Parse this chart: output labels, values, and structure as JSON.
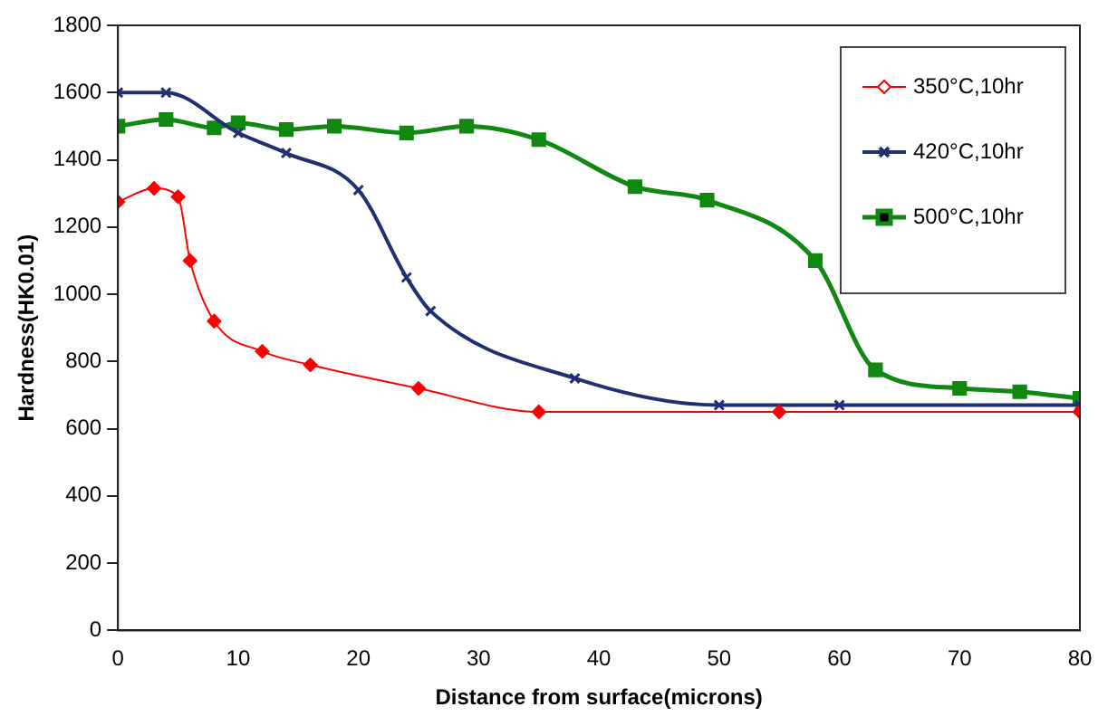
{
  "chart_data": {
    "type": "line",
    "xlabel": "Distance from surface(microns)",
    "ylabel": "Hardness(HK0.01)",
    "xlim": [
      0,
      80
    ],
    "xticks": [
      0,
      10,
      20,
      30,
      40,
      50,
      60,
      70,
      80
    ],
    "ylim": [
      0,
      1800
    ],
    "yticks": [
      0,
      200,
      400,
      600,
      800,
      1000,
      1200,
      1400,
      1600,
      1800
    ],
    "grid": false,
    "legend": "top right",
    "series": [
      {
        "name": "350°C,10hr",
        "color": "#ff0000",
        "marker": "diamond",
        "x": [
          0,
          3,
          5,
          6,
          8,
          12,
          16,
          25,
          35,
          55,
          80
        ],
        "values": [
          1275,
          1315,
          1290,
          1100,
          920,
          830,
          790,
          720,
          650,
          650,
          650
        ]
      },
      {
        "name": "420°C,10hr",
        "color": "#1f2f6f",
        "marker": "cross",
        "x": [
          0,
          4,
          10,
          14,
          20,
          24,
          26,
          38,
          50,
          60,
          80
        ],
        "values": [
          1600,
          1600,
          1480,
          1420,
          1310,
          1050,
          950,
          750,
          670,
          670,
          670
        ]
      },
      {
        "name": "500°C,10hr",
        "color": "#118811",
        "marker": "square",
        "x": [
          0,
          4,
          8,
          10,
          14,
          18,
          24,
          29,
          35,
          43,
          49,
          58,
          63,
          70,
          75,
          80
        ],
        "values": [
          1500,
          1520,
          1495,
          1510,
          1490,
          1500,
          1480,
          1500,
          1460,
          1320,
          1280,
          1100,
          775,
          720,
          710,
          690
        ]
      }
    ]
  }
}
